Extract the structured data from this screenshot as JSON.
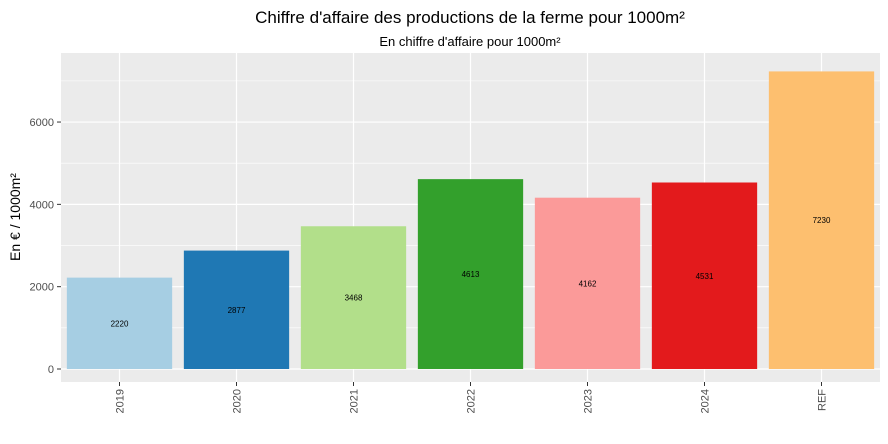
{
  "chart_data": {
    "type": "bar",
    "title": "Chiffre d'affaire des productions de la ferme pour 1000m²",
    "subtitle": "En chiffre d'affaire pour 1000m²",
    "xlabel": "",
    "ylabel": "En € / 1000m²",
    "ylim": [
      0,
      7400
    ],
    "yticks": [
      0,
      2000,
      4000,
      6000
    ],
    "grid": true,
    "categories": [
      "2019",
      "2020",
      "2021",
      "2022",
      "2023",
      "2024",
      "REF"
    ],
    "values": [
      2220,
      2877,
      3468,
      4613,
      4162,
      4531,
      7230
    ],
    "value_labels": [
      "2220",
      "2877",
      "3468",
      "4613",
      "4162",
      "4531",
      "7230"
    ],
    "colors": [
      "#a6cee3",
      "#1f78b4",
      "#b2df8a",
      "#33a02c",
      "#fb9a99",
      "#e31a1c",
      "#fdbf6f"
    ]
  }
}
